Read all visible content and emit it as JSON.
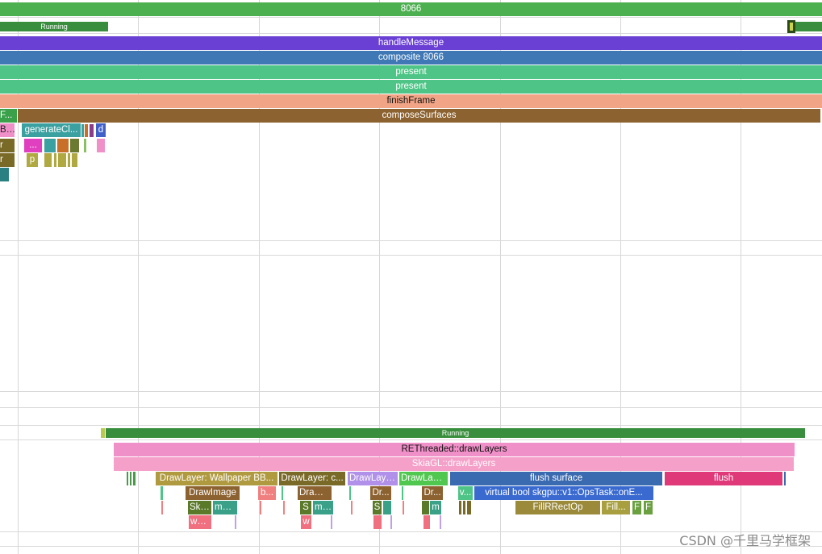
{
  "colors": {
    "green": "#4caf50",
    "dark_green": "#388e3c",
    "purple": "#6a3fd4",
    "blue": "#3f78b5",
    "teal_green": "#4ec586",
    "salmon": "#f2a586",
    "brown": "#8c6230",
    "pink": "#f090c8",
    "olive": "#9b8a3a",
    "magenta": "#e0397a"
  },
  "process_track": {
    "main_slice": "8066",
    "thread_state": "Running"
  },
  "main_thread": {
    "slices": [
      "handleMessage",
      "composite 8066",
      "present",
      "present",
      "finishFrame",
      "composeSurfaces"
    ],
    "left_truncated": [
      "F...",
      "Bu...",
      "r",
      "r"
    ],
    "generate_label": "generateCl...",
    "d_label": "d",
    "dots_label": "...",
    "p_label": "p"
  },
  "render_engine_thread": {
    "thread_state": "Running",
    "draw_layers": "REThreaded::drawLayers",
    "skia_draw_layers": "SkiaGL::drawLayers",
    "level3": [
      "DrawLayer: Wallpaper BB...",
      "DrawLayer: c...",
      "DrawLaye...",
      "DrawLaye...",
      "flush surface",
      "flush"
    ],
    "level4": [
      "DrawImage",
      "b...",
      "DrawI...",
      "Dr...",
      "Dr...",
      "v...",
      "virtual bool skgpu::v1::OpsTask::onE..."
    ],
    "level5": [
      "Ski...",
      "mak...",
      "S",
      "ma...",
      "S",
      "m",
      "FillRRectOp",
      "Fill...",
      "F",
      "F"
    ],
    "level6": [
      "wa...",
      "w"
    ]
  },
  "watermark": "CSDN @千里马学框架"
}
